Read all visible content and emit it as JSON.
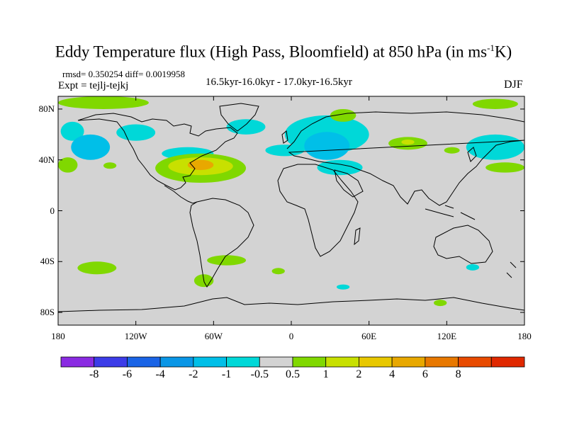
{
  "title": {
    "main": "Eddy Temperature flux (High Pass, Bloomfield) at 850 hPa (in ms",
    "sup": "-1",
    "end": "K)"
  },
  "stats": "rmsd= 0.350254 diff= 0.0019958",
  "expt": "Expt = tejlj-tejkj",
  "subtitle": "16.5kyr-16.0kyr - 17.0kyr-16.5kyr",
  "season": "DJF",
  "map": {
    "projection": "cylindrical-equidistant",
    "lon_range": [
      -180,
      180
    ],
    "lat_range": [
      -90,
      90
    ],
    "background_color": "#d3d3d3",
    "coastline_color": "#000000",
    "y_ticks": [
      {
        "lat": 80,
        "label": "80N"
      },
      {
        "lat": 40,
        "label": "40N"
      },
      {
        "lat": 0,
        "label": "0"
      },
      {
        "lat": -40,
        "label": "40S"
      },
      {
        "lat": -80,
        "label": "80S"
      }
    ],
    "x_ticks": [
      {
        "lon": -180,
        "label": "180"
      },
      {
        "lon": -120,
        "label": "120W"
      },
      {
        "lon": -60,
        "label": "60W"
      },
      {
        "lon": 0,
        "label": "0"
      },
      {
        "lon": 60,
        "label": "60E"
      },
      {
        "lon": 120,
        "label": "120E"
      },
      {
        "lon": 180,
        "label": "180"
      }
    ],
    "anomaly_regions": [
      {
        "level": "0.5-1",
        "color": "#80d800",
        "lon": [
          -180,
          -110
        ],
        "lat": [
          80,
          90
        ]
      },
      {
        "level": "0.5-1",
        "color": "#80d800",
        "lon": [
          140,
          175
        ],
        "lat": [
          80,
          88
        ]
      },
      {
        "level": "-1--0.5",
        "color": "#00d8d8",
        "lon": [
          -178,
          -160
        ],
        "lat": [
          55,
          70
        ]
      },
      {
        "level": "-2--1",
        "color": "#00bfe8",
        "lon": [
          -170,
          -140
        ],
        "lat": [
          40,
          60
        ]
      },
      {
        "level": "-1--0.5",
        "color": "#00d8d8",
        "lon": [
          -135,
          -105
        ],
        "lat": [
          55,
          68
        ]
      },
      {
        "level": "0.5-1",
        "color": "#80d800",
        "lon": [
          -180,
          -165
        ],
        "lat": [
          30,
          42
        ]
      },
      {
        "level": "0.5-1",
        "color": "#80d800",
        "lon": [
          -145,
          -135
        ],
        "lat": [
          33,
          38
        ]
      },
      {
        "level": "-1--0.5",
        "color": "#00d8d8",
        "lon": [
          -100,
          -60
        ],
        "lat": [
          40,
          50
        ]
      },
      {
        "level": "0.5-1",
        "color": "#80d800",
        "lon": [
          -105,
          -35
        ],
        "lat": [
          22,
          45
        ]
      },
      {
        "level": "1-2",
        "color": "#c8e000",
        "lon": [
          -95,
          -45
        ],
        "lat": [
          28,
          42
        ]
      },
      {
        "level": "2-4",
        "color": "#e8a800",
        "lon": [
          -80,
          -60
        ],
        "lat": [
          32,
          40
        ]
      },
      {
        "level": "-1--0.5",
        "color": "#00d8d8",
        "lon": [
          -50,
          -20
        ],
        "lat": [
          60,
          72
        ]
      },
      {
        "level": "-1--0.5",
        "color": "#00d8d8",
        "lon": [
          -20,
          10
        ],
        "lat": [
          43,
          52
        ]
      },
      {
        "level": "-1--0.5",
        "color": "#00d8d8",
        "lon": [
          -5,
          60
        ],
        "lat": [
          45,
          75
        ]
      },
      {
        "level": "-2--1",
        "color": "#00bfe8",
        "lon": [
          10,
          45
        ],
        "lat": [
          40,
          62
        ]
      },
      {
        "level": "-1--0.5",
        "color": "#00d8d8",
        "lon": [
          20,
          55
        ],
        "lat": [
          28,
          40
        ]
      },
      {
        "level": "0.5-1",
        "color": "#80d800",
        "lon": [
          30,
          50
        ],
        "lat": [
          70,
          80
        ]
      },
      {
        "level": "0.5-1",
        "color": "#80d800",
        "lon": [
          75,
          105
        ],
        "lat": [
          48,
          58
        ]
      },
      {
        "level": "1-2",
        "color": "#c8e000",
        "lon": [
          85,
          95
        ],
        "lat": [
          52,
          56
        ]
      },
      {
        "level": "0.5-1",
        "color": "#80d800",
        "lon": [
          118,
          130
        ],
        "lat": [
          45,
          50
        ]
      },
      {
        "level": "-1--0.5",
        "color": "#00d8d8",
        "lon": [
          135,
          180
        ],
        "lat": [
          40,
          60
        ]
      },
      {
        "level": "0.5-1",
        "color": "#80d800",
        "lon": [
          150,
          180
        ],
        "lat": [
          30,
          38
        ]
      },
      {
        "level": "0.5-1",
        "color": "#80d800",
        "lon": [
          -65,
          -35
        ],
        "lat": [
          -43,
          -35
        ]
      },
      {
        "level": "0.5-1",
        "color": "#80d800",
        "lon": [
          -165,
          -135
        ],
        "lat": [
          -50,
          -40
        ]
      },
      {
        "level": "0.5-1",
        "color": "#80d800",
        "lon": [
          -75,
          -60
        ],
        "lat": [
          -60,
          -50
        ]
      },
      {
        "level": "0.5-1",
        "color": "#80d800",
        "lon": [
          -15,
          -5
        ],
        "lat": [
          -50,
          -45
        ]
      },
      {
        "level": "-1--0.5",
        "color": "#00d8d8",
        "lon": [
          35,
          45
        ],
        "lat": [
          -62,
          -58
        ]
      },
      {
        "level": "-1--0.5",
        "color": "#00d8d8",
        "lon": [
          135,
          145
        ],
        "lat": [
          -47,
          -42
        ]
      },
      {
        "level": "0.5-1",
        "color": "#80d800",
        "lon": [
          110,
          120
        ],
        "lat": [
          -75,
          -70
        ]
      }
    ]
  },
  "colorbar": {
    "colors": [
      "#8a2be2",
      "#3c3ce8",
      "#1a64e6",
      "#0a96e6",
      "#00bfe8",
      "#00d8d8",
      "#d3d3d3",
      "#80d800",
      "#c8e000",
      "#e8c800",
      "#e8a800",
      "#e87800",
      "#e84a00",
      "#e02800"
    ],
    "labels": [
      "-8",
      "-6",
      "-4",
      "-2",
      "-1",
      "-0.5",
      "0.5",
      "1",
      "2",
      "4",
      "6",
      "8"
    ]
  }
}
